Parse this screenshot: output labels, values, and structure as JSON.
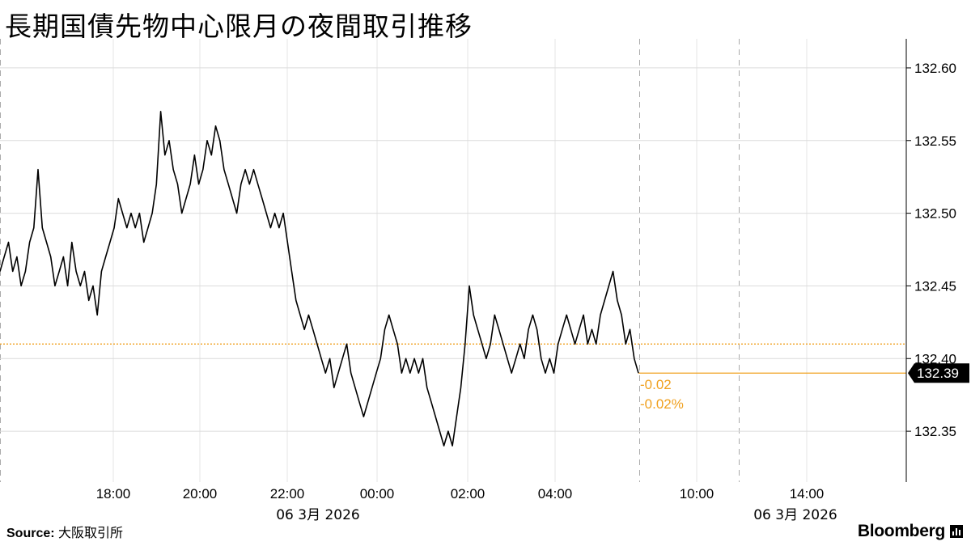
{
  "title": "長期国債先物中心限月の夜間取引推移",
  "source_label": "Source:",
  "source_value": "大阪取引所",
  "brand": "Bloomberg",
  "chart_data": {
    "type": "line",
    "title": "長期国債先物中心限月の夜間取引推移",
    "xlabel": "",
    "ylabel": "",
    "x_ticks": [
      "18:00",
      "20:00",
      "22:00",
      "00:00",
      "02:00",
      "04:00",
      "10:00",
      "14:00"
    ],
    "date_labels": [
      "06 3月 2026",
      "06 3月 2026"
    ],
    "y_ticks": [
      132.35,
      132.4,
      132.45,
      132.5,
      132.55,
      132.6
    ],
    "ylim": [
      132.315,
      132.62
    ],
    "reference_level": 132.41,
    "last_value": 132.39,
    "last_value_label": "132.39",
    "change_abs": "-0.02",
    "change_pct": "-0.02%",
    "grid": true,
    "series": [
      {
        "values_approx": [
          132.46,
          132.47,
          132.48,
          132.46,
          132.47,
          132.45,
          132.46,
          132.48,
          132.49,
          132.53,
          132.49,
          132.48,
          132.47,
          132.45,
          132.46,
          132.47,
          132.45,
          132.48,
          132.46,
          132.45,
          132.46,
          132.44,
          132.45,
          132.43,
          132.46,
          132.47,
          132.48,
          132.49,
          132.51,
          132.5,
          132.49,
          132.5,
          132.49,
          132.5,
          132.48,
          132.49,
          132.5,
          132.52,
          132.57,
          132.54,
          132.55,
          132.53,
          132.52,
          132.5,
          132.51,
          132.52,
          132.54,
          132.52,
          132.53,
          132.55,
          132.54,
          132.56,
          132.55,
          132.53,
          132.52,
          132.51,
          132.5,
          132.52,
          132.53,
          132.52,
          132.53,
          132.52,
          132.51,
          132.5,
          132.49,
          132.5,
          132.49,
          132.5,
          132.48,
          132.46,
          132.44,
          132.43,
          132.42,
          132.43,
          132.42,
          132.41,
          132.4,
          132.39,
          132.4,
          132.38,
          132.39,
          132.4,
          132.41,
          132.39,
          132.38,
          132.37,
          132.36,
          132.37,
          132.38,
          132.39,
          132.4,
          132.42,
          132.43,
          132.42,
          132.41,
          132.39,
          132.4,
          132.39,
          132.4,
          132.39,
          132.4,
          132.38,
          132.37,
          132.36,
          132.35,
          132.34,
          132.35,
          132.34,
          132.36,
          132.38,
          132.41,
          132.45,
          132.43,
          132.42,
          132.41,
          132.4,
          132.41,
          132.43,
          132.42,
          132.41,
          132.4,
          132.39,
          132.4,
          132.41,
          132.4,
          132.42,
          132.43,
          132.42,
          132.4,
          132.39,
          132.4,
          132.39,
          132.41,
          132.42,
          132.43,
          132.42,
          132.41,
          132.42,
          132.43,
          132.41,
          132.42,
          132.41,
          132.43,
          132.44,
          132.45,
          132.46,
          132.44,
          132.43,
          132.41,
          132.42,
          132.4,
          132.39
        ]
      }
    ]
  }
}
